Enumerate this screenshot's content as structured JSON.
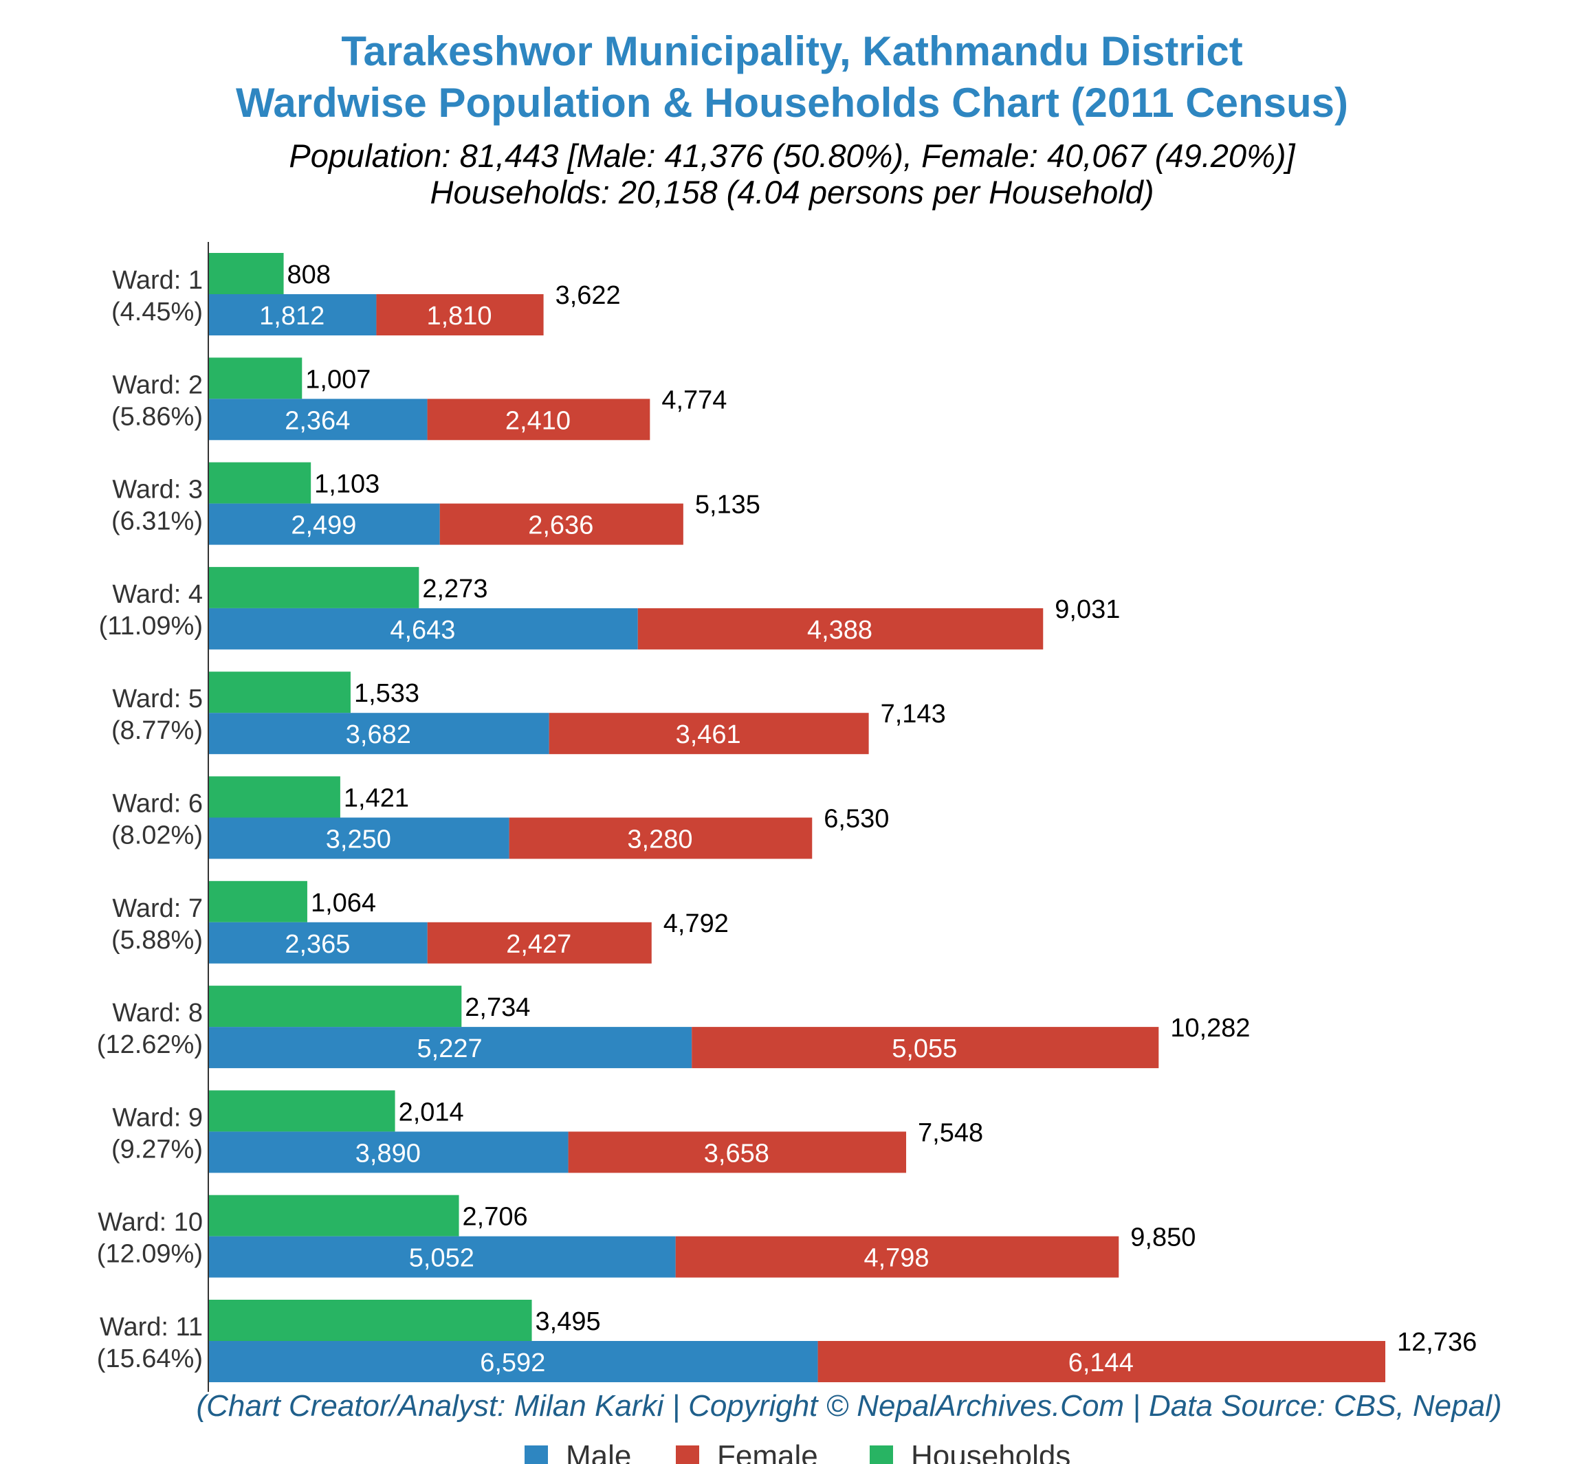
{
  "title": {
    "line1": "Tarakeshwor Municipality, Kathmandu District",
    "line2": "Wardwise Population & Households Chart (2011 Census)"
  },
  "subtitle": {
    "line1": "Population: 81,443 [Male: 41,376 (50.80%), Female: 40,067 (49.20%)]",
    "line2": "Households: 20,158 (4.04 persons per Household)"
  },
  "footer": "(Chart Creator/Analyst: Milan Karki | Copyright © NepalArchives.Com | Data Source: CBS, Nepal)",
  "colors": {
    "title": "#2e86c1",
    "male": "#2e86c1",
    "female": "#cb4335",
    "households": "#28b463",
    "footer": "#1f5f8b",
    "axis": "#333333",
    "label": "#333333",
    "value": "#000000",
    "inbar": "#ffffff"
  },
  "chart_data": {
    "type": "bar",
    "orientation": "horizontal",
    "stacked_series": [
      "Male",
      "Female"
    ],
    "categories": [
      "Ward: 1",
      "Ward: 2",
      "Ward: 3",
      "Ward: 4",
      "Ward: 5",
      "Ward: 6",
      "Ward: 7",
      "Ward: 8",
      "Ward: 9",
      "Ward: 10",
      "Ward: 11"
    ],
    "category_percent": [
      "(4.45%)",
      "(5.86%)",
      "(6.31%)",
      "(11.09%)",
      "(8.77%)",
      "(8.02%)",
      "(5.88%)",
      "(12.62%)",
      "(9.27%)",
      "(12.09%)",
      "(15.64%)"
    ],
    "series": [
      {
        "name": "Male",
        "values": [
          1812,
          2364,
          2499,
          4643,
          3682,
          3250,
          2365,
          5227,
          3890,
          5052,
          6592
        ]
      },
      {
        "name": "Female",
        "values": [
          1810,
          2410,
          2636,
          4388,
          3461,
          3280,
          2427,
          5055,
          3658,
          4798,
          6144
        ]
      },
      {
        "name": "Households",
        "values": [
          808,
          1007,
          1103,
          2273,
          1533,
          1421,
          1064,
          2734,
          2014,
          2706,
          3495
        ]
      }
    ],
    "totals": [
      3622,
      4774,
      5135,
      9031,
      7143,
      6530,
      4792,
      10282,
      7548,
      9850,
      12736
    ],
    "xlim": [
      0,
      14000
    ],
    "legend": [
      "Male",
      "Female",
      "Households"
    ],
    "legend_position": "bottom",
    "grid": false
  }
}
